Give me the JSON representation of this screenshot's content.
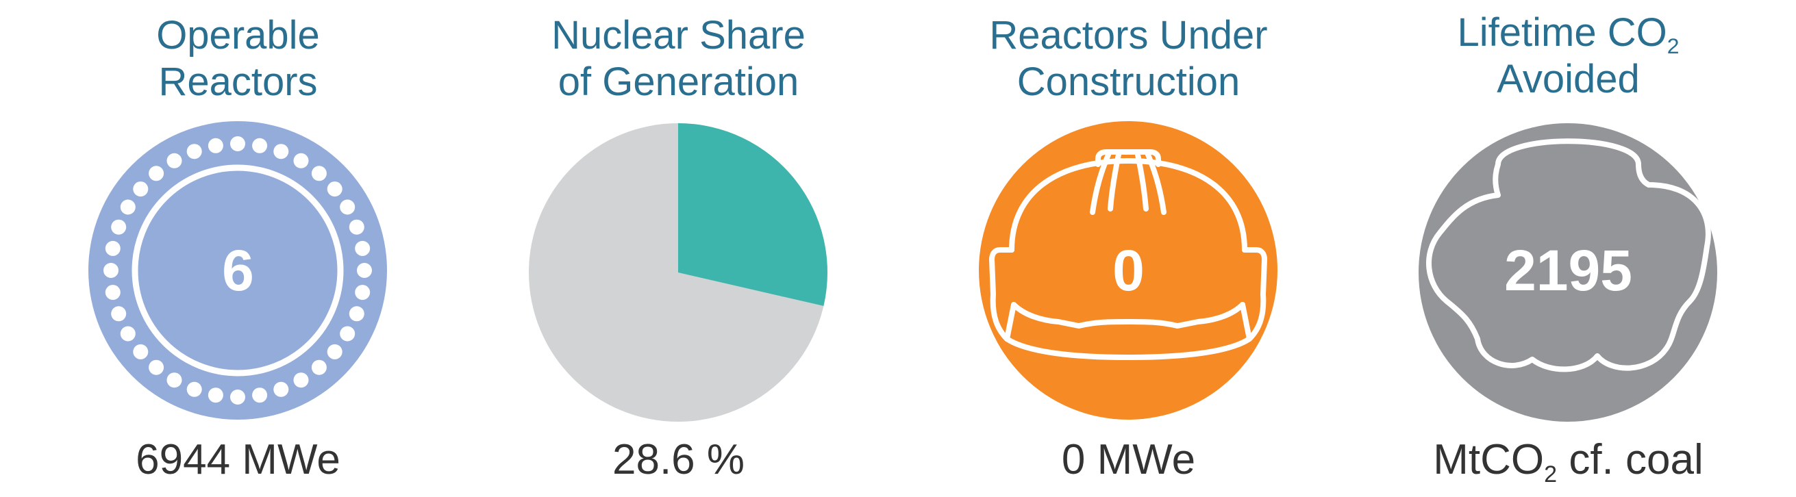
{
  "operable_reactors": {
    "title_line1": "Operable",
    "title_line2": "Reactors",
    "value": "6",
    "caption": "6944 MWe",
    "color": "#94acd9"
  },
  "nuclear_share": {
    "title_line1": "Nuclear Share",
    "title_line2": "of Generation",
    "caption": "28.6 %",
    "share_fraction": 0.286,
    "nuclear_color": "#3db5ad",
    "other_color": "#d1d3d4"
  },
  "under_construction": {
    "title_line1": "Reactors Under",
    "title_line2": "Construction",
    "value": "0",
    "caption": "0 MWe",
    "color": "#f68b25",
    "icon": "hard-hat-icon"
  },
  "co2_avoided": {
    "title_line1_pre": "Lifetime CO",
    "title_line1_sub": "2",
    "title_line2": "Avoided",
    "value": "2195",
    "caption_pre": "MtCO",
    "caption_sub": "2",
    "caption_post": " cf. coal",
    "color": "#939598",
    "icon": "cloud-icon"
  }
}
